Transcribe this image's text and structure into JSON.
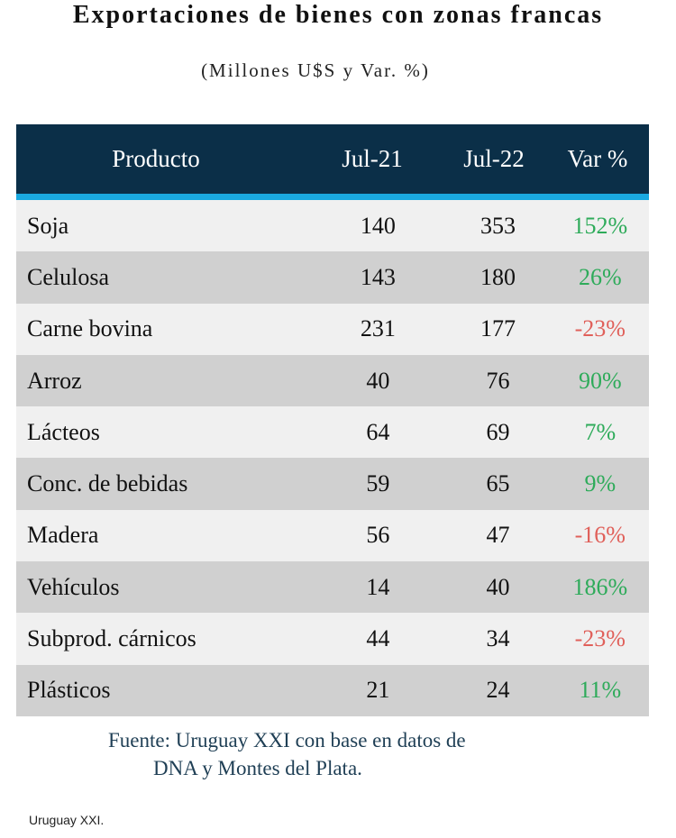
{
  "title": "Exportaciones de bienes con zonas francas",
  "subtitle": "(Millones U$S y Var. %)",
  "table": {
    "headers": [
      "Producto",
      "Jul-21",
      "Jul-22",
      "Var %"
    ],
    "rows": [
      {
        "producto": "Soja",
        "jul21": "140",
        "jul22": "353",
        "var": "152%"
      },
      {
        "producto": "Celulosa",
        "jul21": "143",
        "jul22": "180",
        "var": "26%"
      },
      {
        "producto": "Carne bovina",
        "jul21": "231",
        "jul22": "177",
        "var": "-23%"
      },
      {
        "producto": "Arroz",
        "jul21": "40",
        "jul22": "76",
        "var": "90%"
      },
      {
        "producto": "Lácteos",
        "jul21": "64",
        "jul22": "69",
        "var": "7%"
      },
      {
        "producto": "Conc. de bebidas",
        "jul21": "59",
        "jul22": "65",
        "var": "9%"
      },
      {
        "producto": "Madera",
        "jul21": "56",
        "jul22": "47",
        "var": "-16%"
      },
      {
        "producto": "Vehículos",
        "jul21": "14",
        "jul22": "40",
        "var": "186%"
      },
      {
        "producto": "Subprod. cárnicos",
        "jul21": "44",
        "jul22": "34",
        "var": "-23%"
      },
      {
        "producto": "Plásticos",
        "jul21": "21",
        "jul22": "24",
        "var": "11%"
      }
    ]
  },
  "source": {
    "line1": "Fuente: Uruguay XXI con base en datos de",
    "line2": "DNA y Montes del Plata."
  },
  "credit": "Uruguay XXI.",
  "colors": {
    "header": "#0b2f48",
    "accent": "#1aa9e0",
    "positive": "#2eab5a",
    "negative": "#e0605a"
  }
}
